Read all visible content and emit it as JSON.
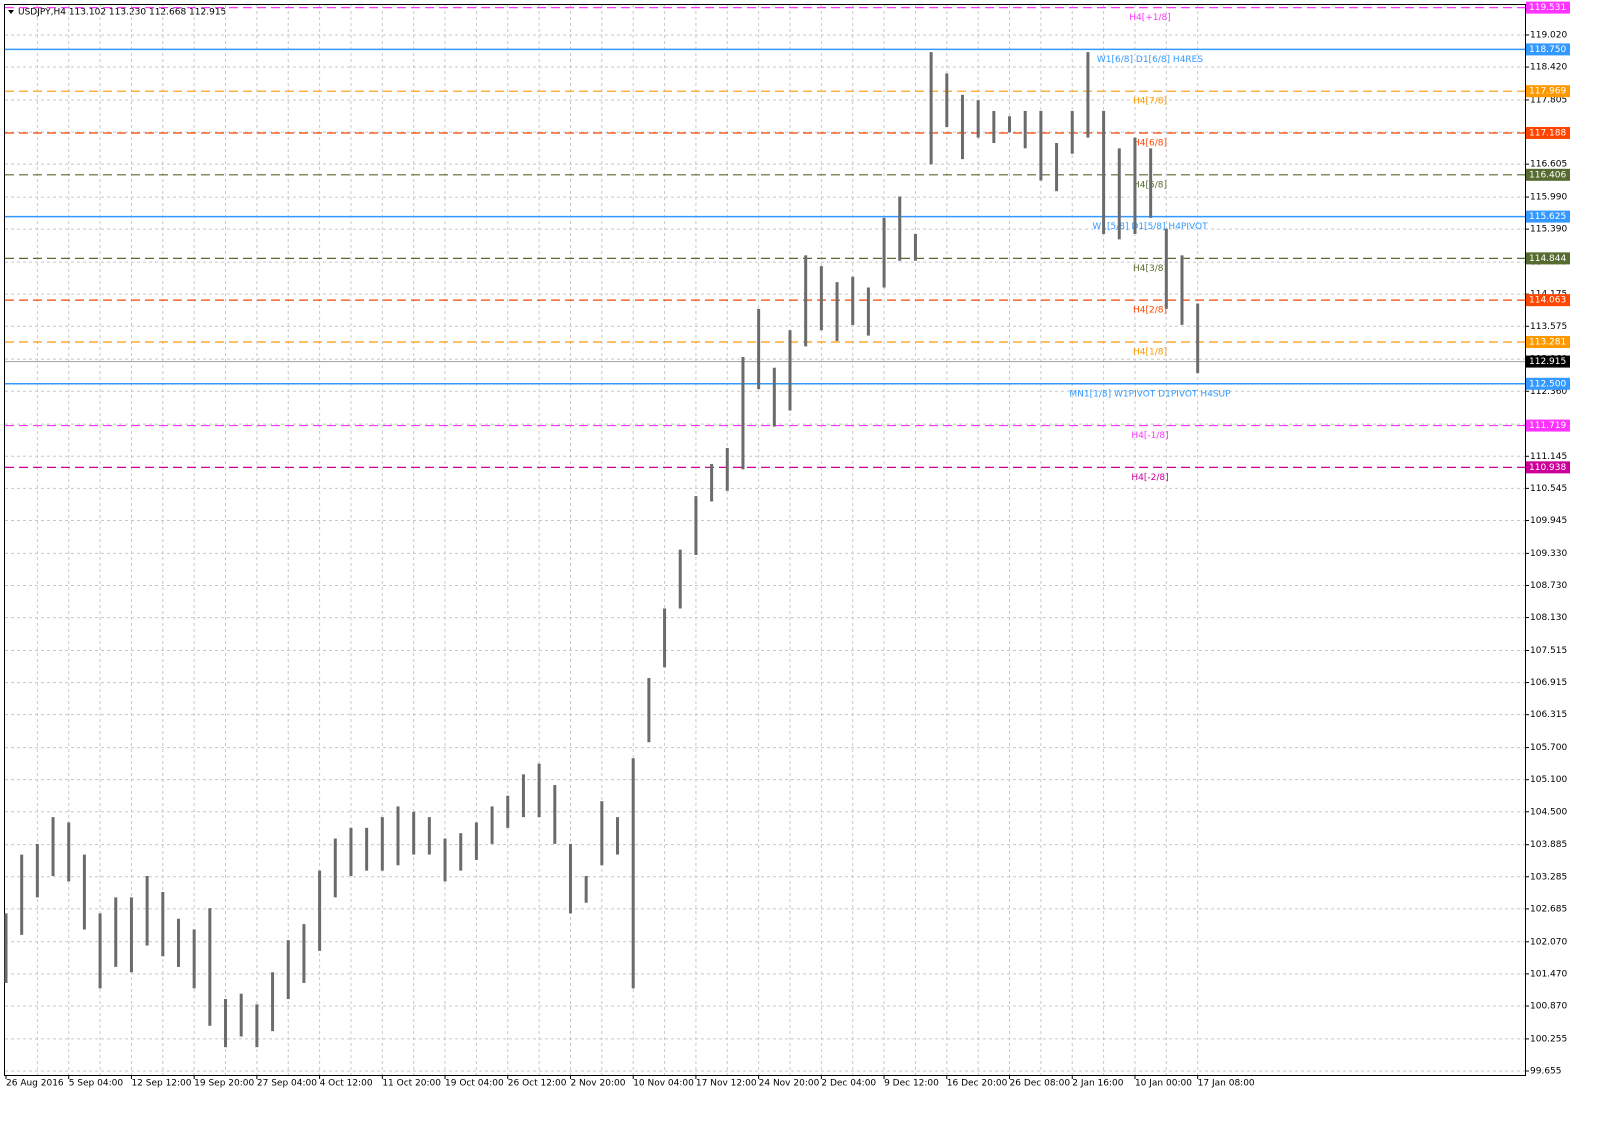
{
  "chart_data": {
    "type": "ohlc-bar",
    "header": "USDJPY,H4  113.102 113.230 112.668 112.915",
    "categories": [
      "26 Aug 2016",
      null,
      null,
      null,
      "5 Sep 04:00",
      null,
      null,
      null,
      "12 Sep 12:00",
      null,
      null,
      null,
      "19 Sep 20:00",
      null,
      null,
      null,
      "27 Sep 04:00",
      null,
      null,
      null,
      "4 Oct 12:00",
      null,
      null,
      null,
      "11 Oct 20:00",
      null,
      null,
      null,
      "19 Oct 04:00",
      null,
      null,
      null,
      "26 Oct 12:00",
      null,
      null,
      null,
      "2 Nov 20:00",
      null,
      null,
      null,
      "10 Nov 04:00",
      null,
      null,
      null,
      "17 Nov 12:00",
      null,
      null,
      null,
      "24 Nov 20:00",
      null,
      null,
      null,
      "2 Dec 04:00",
      null,
      null,
      null,
      "9 Dec 12:00",
      null,
      null,
      null,
      "16 Dec 20:00",
      null,
      null,
      null,
      "26 Dec 08:00",
      null,
      null,
      null,
      "2 Jan 16:00",
      null,
      null,
      null,
      "10 Jan 00:00",
      null,
      null,
      null,
      "17 Jan 08:00"
    ],
    "low": [
      101.3,
      102.2,
      102.9,
      103.3,
      103.2,
      102.3,
      101.2,
      101.6,
      101.5,
      102.0,
      101.8,
      101.6,
      101.2,
      100.5,
      100.1,
      100.3,
      100.1,
      100.4,
      101.0,
      101.3,
      101.9,
      102.9,
      103.3,
      103.4,
      103.4,
      103.5,
      103.7,
      103.7,
      103.2,
      103.4,
      103.6,
      103.9,
      104.2,
      104.4,
      104.4,
      103.9,
      102.6,
      102.8,
      103.5,
      103.7,
      101.2,
      105.8,
      107.2,
      108.3,
      109.3,
      110.3,
      110.5,
      110.9,
      112.4,
      111.7,
      112.0,
      113.2,
      113.5,
      113.3,
      113.6,
      113.4,
      114.3,
      114.8,
      114.8,
      116.6,
      117.3,
      116.7,
      117.1,
      117.0,
      117.2,
      116.9,
      116.3,
      116.1,
      116.8,
      117.1,
      115.3,
      115.2,
      115.3,
      115.6,
      113.9,
      113.6,
      112.7
    ],
    "high": [
      102.6,
      103.7,
      103.9,
      104.4,
      104.3,
      103.7,
      102.6,
      102.9,
      102.9,
      103.3,
      103.0,
      102.5,
      102.3,
      102.7,
      101.0,
      101.1,
      100.9,
      101.5,
      102.1,
      102.4,
      103.4,
      104.0,
      104.2,
      104.2,
      104.4,
      104.6,
      104.5,
      104.4,
      104.0,
      104.1,
      104.3,
      104.6,
      104.8,
      105.2,
      105.4,
      105.0,
      103.9,
      103.3,
      104.7,
      104.4,
      105.5,
      107.0,
      108.3,
      109.4,
      110.4,
      111.0,
      111.3,
      113.0,
      113.9,
      112.8,
      113.5,
      114.9,
      114.7,
      114.4,
      114.5,
      114.3,
      115.6,
      116.0,
      115.3,
      118.7,
      118.3,
      117.9,
      117.8,
      117.6,
      117.5,
      117.6,
      117.6,
      117.0,
      117.6,
      118.7,
      117.6,
      116.9,
      117.1,
      116.9,
      115.4,
      114.9,
      114.0
    ],
    "color": "#6b6b6b",
    "ylim": [
      99.58,
      119.58
    ],
    "yticks": [
      {
        "value": 119.02,
        "label": "119.020"
      },
      {
        "value": 118.42,
        "label": "118.420"
      },
      117.805,
      117.205,
      116.605,
      {
        "value": 115.99,
        "label": "115.990"
      },
      {
        "value": 115.39,
        "label": "115.390"
      },
      114.775,
      114.175,
      113.575,
      {
        "value": 112.96,
        "label": "112.960"
      },
      {
        "value": 112.36,
        "label": "112.360"
      },
      111.745,
      111.145,
      110.545,
      109.945,
      {
        "value": 109.33,
        "label": "109.330"
      },
      {
        "value": 108.73,
        "label": "108.730"
      },
      {
        "value": 108.13,
        "label": "108.130"
      },
      107.515,
      106.915,
      106.315,
      {
        "value": 105.7,
        "label": "105.700"
      },
      {
        "value": 105.1,
        "label": "105.100"
      },
      {
        "value": 104.5,
        "label": "104.500"
      },
      103.885,
      103.285,
      102.685,
      {
        "value": 102.07,
        "label": "102.070"
      },
      {
        "value": 101.47,
        "label": "101.470"
      },
      {
        "value": 100.87,
        "label": "100.870"
      },
      100.255,
      99.655
    ],
    "grid": true,
    "levels": {
      "values": [
        119.531,
        118.75,
        117.969,
        117.188,
        116.406,
        115.625,
        114.844,
        114.063,
        113.281,
        112.5,
        111.719,
        110.938
      ],
      "value_labels": [
        "119.531",
        "118.750",
        "117.969",
        "117.188",
        "116.406",
        "115.625",
        "114.844",
        "114.063",
        "113.281",
        "112.500",
        "111.719",
        "110.938"
      ],
      "names": [
        "H4[+1/8]",
        "W1[6/8] D1[6/8] H4RES",
        "H4[7/8]",
        "H4[6/8]",
        "H4[5/8]",
        "W1[5/8] D1[5/8] H4PIVOT",
        "H4[3/8]",
        "H4[2/8]",
        "H4[1/8]",
        "MN1[1/8] W1PIVOT D1PIVOT H4SUP",
        "H4[-1/8]",
        "H4[-2/8]"
      ],
      "colors": [
        "#ff33ff",
        "#3399ff",
        "#ff9900",
        "#ff4500",
        "#556b2f",
        "#3399ff",
        "#556b2f",
        "#ff4500",
        "#ff9900",
        "#3399ff",
        "#ff33ff",
        "#cc0099"
      ],
      "dashed": [
        true,
        false,
        true,
        true,
        true,
        false,
        true,
        true,
        true,
        false,
        true,
        true
      ]
    },
    "last_price": 112.915
  }
}
